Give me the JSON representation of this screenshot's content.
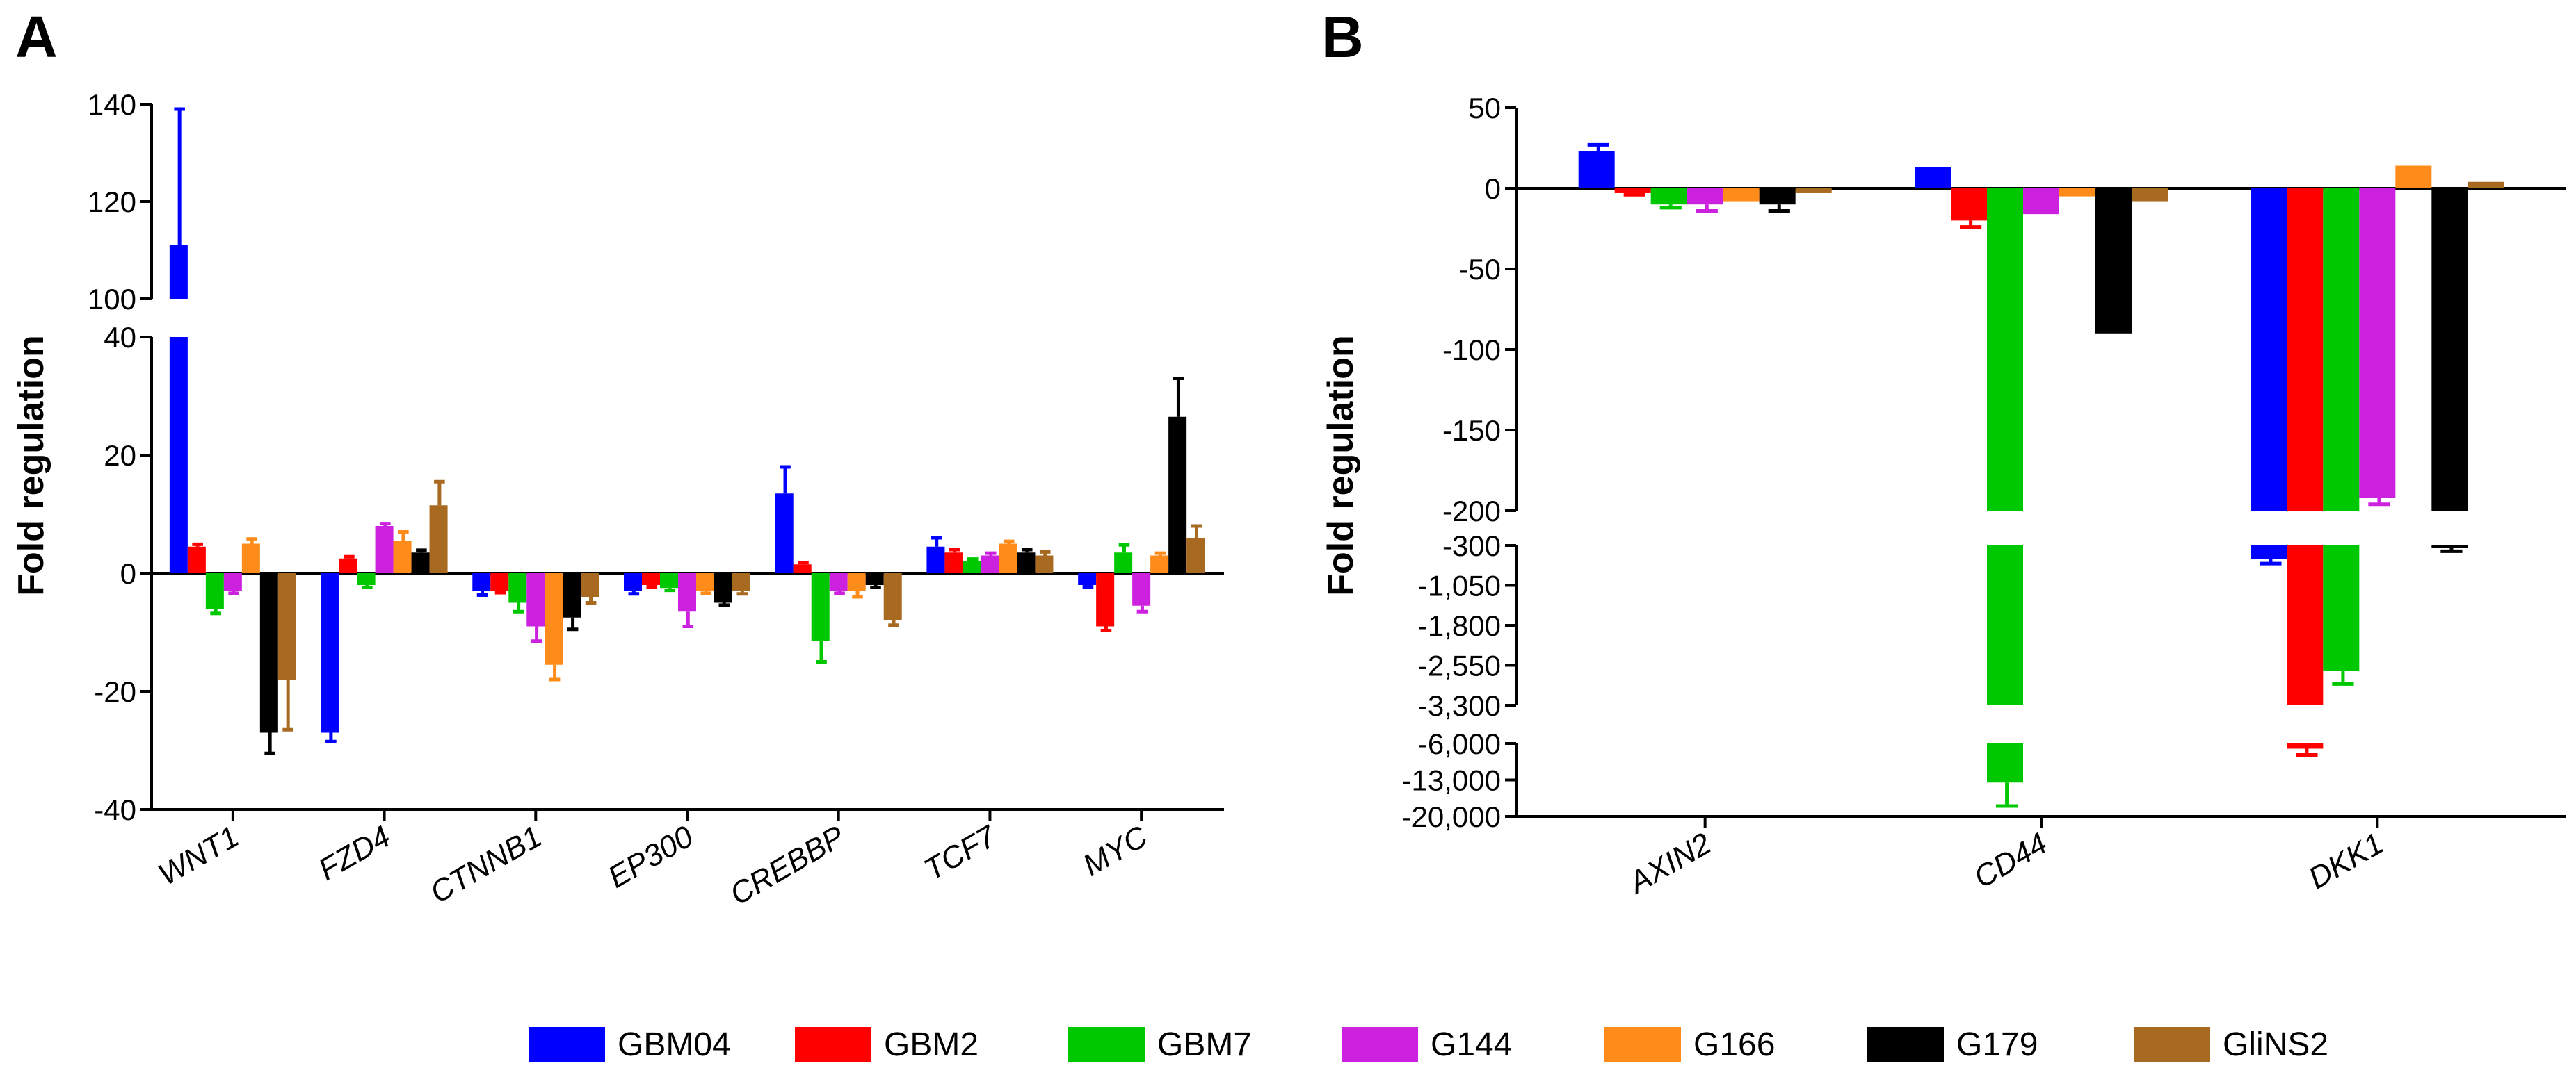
{
  "series_colors": {
    "GBM04": "#0000ff",
    "GBM2": "#ff0000",
    "GBM7": "#00c800",
    "G144": "#cc22e0",
    "G166": "#ff8c1a",
    "G179": "#000000",
    "GliNS2": "#a86a20"
  },
  "legend": {
    "items": [
      "GBM04",
      "GBM2",
      "GBM7",
      "G144",
      "G166",
      "G179",
      "GliNS2"
    ]
  },
  "chart_data": [
    {
      "panel": "A",
      "type": "bar",
      "ylabel": "Fold regulation",
      "y_axis_segments": [
        {
          "range": [
            -40,
            40
          ],
          "ticks": [
            "-40",
            "-20",
            "0",
            "20",
            "40"
          ]
        },
        {
          "range": [
            100,
            140
          ],
          "ticks": [
            "100",
            "120",
            "140"
          ]
        }
      ],
      "categories": [
        "WNT1",
        "FZD4",
        "CTNNB1",
        "EP300",
        "CREBBP",
        "TCF7",
        "MYC"
      ],
      "series": [
        {
          "name": "GBM04",
          "values": [
            111,
            -27,
            -3,
            -3,
            13.5,
            4.5,
            -2
          ],
          "errors": [
            28,
            1.5,
            0.7,
            0.5,
            4.5,
            1.5,
            0.3
          ]
        },
        {
          "name": "GBM2",
          "values": [
            4.5,
            2.5,
            -3,
            -2,
            1.5,
            3.5,
            -9
          ],
          "errors": [
            0.4,
            0.3,
            0.3,
            0.3,
            0.3,
            0.5,
            0.7
          ]
        },
        {
          "name": "GBM7",
          "values": [
            -6,
            -2,
            -5,
            -2.5,
            -11.5,
            2,
            3.5
          ],
          "errors": [
            0.8,
            0.4,
            1.5,
            0.4,
            3.5,
            0.4,
            1.3
          ]
        },
        {
          "name": "G144",
          "values": [
            -3,
            8,
            -9,
            -6.5,
            -3,
            3,
            -5.5
          ],
          "errors": [
            0.4,
            0.4,
            2.5,
            2.5,
            0.4,
            0.4,
            1
          ]
        },
        {
          "name": "G166",
          "values": [
            5,
            5.5,
            -15.5,
            -3,
            -3,
            5,
            3
          ],
          "errors": [
            0.8,
            1.5,
            2.5,
            0.4,
            1,
            0.4,
            0.4
          ]
        },
        {
          "name": "G179",
          "values": [
            -27,
            3.5,
            -7.5,
            -5,
            -2,
            3.5,
            26.5
          ],
          "errors": [
            3.5,
            0.4,
            2,
            0.4,
            0.4,
            0.5,
            6.5
          ]
        },
        {
          "name": "GliNS2",
          "values": [
            -18,
            11.5,
            -4,
            -3,
            -8,
            3,
            6
          ],
          "errors": [
            8.5,
            4,
            1,
            0.5,
            0.8,
            0.6,
            2
          ]
        }
      ]
    },
    {
      "panel": "B",
      "type": "bar",
      "ylabel": "Fold regulation",
      "y_axis_segments": [
        {
          "range": [
            -200,
            50
          ],
          "ticks": [
            "50",
            "0",
            "-50",
            "-100",
            "-150",
            "-200"
          ]
        },
        {
          "range": [
            -3300,
            -300
          ],
          "ticks": [
            "-300",
            "-1,050",
            "-1,800",
            "-2,550",
            "-3,300"
          ]
        },
        {
          "range": [
            -20000,
            -6000
          ],
          "ticks": [
            "-6,000",
            "-13,000",
            "-20,000"
          ]
        }
      ],
      "categories": [
        "AXIN2",
        "CD44",
        "DKK1"
      ],
      "series": [
        {
          "name": "GBM04",
          "values": [
            23,
            13,
            -560
          ],
          "errors": [
            4,
            0,
            80
          ]
        },
        {
          "name": "GBM2",
          "values": [
            -3,
            -20,
            -7000
          ],
          "errors": [
            1,
            4,
            1200
          ]
        },
        {
          "name": "GBM7",
          "values": [
            -10,
            -13500,
            -2650
          ],
          "errors": [
            2,
            4500,
            250
          ]
        },
        {
          "name": "G144",
          "values": [
            -10,
            -16,
            -192
          ],
          "errors": [
            4,
            0,
            4
          ]
        },
        {
          "name": "G166",
          "values": [
            -8,
            -5,
            14
          ],
          "errors": [
            0,
            0,
            0
          ]
        },
        {
          "name": "G179",
          "values": [
            -10,
            -90,
            -340
          ],
          "errors": [
            4,
            0,
            70
          ]
        },
        {
          "name": "GliNS2",
          "values": [
            -3,
            -8,
            4
          ],
          "errors": [
            0,
            0,
            0
          ]
        }
      ]
    }
  ]
}
